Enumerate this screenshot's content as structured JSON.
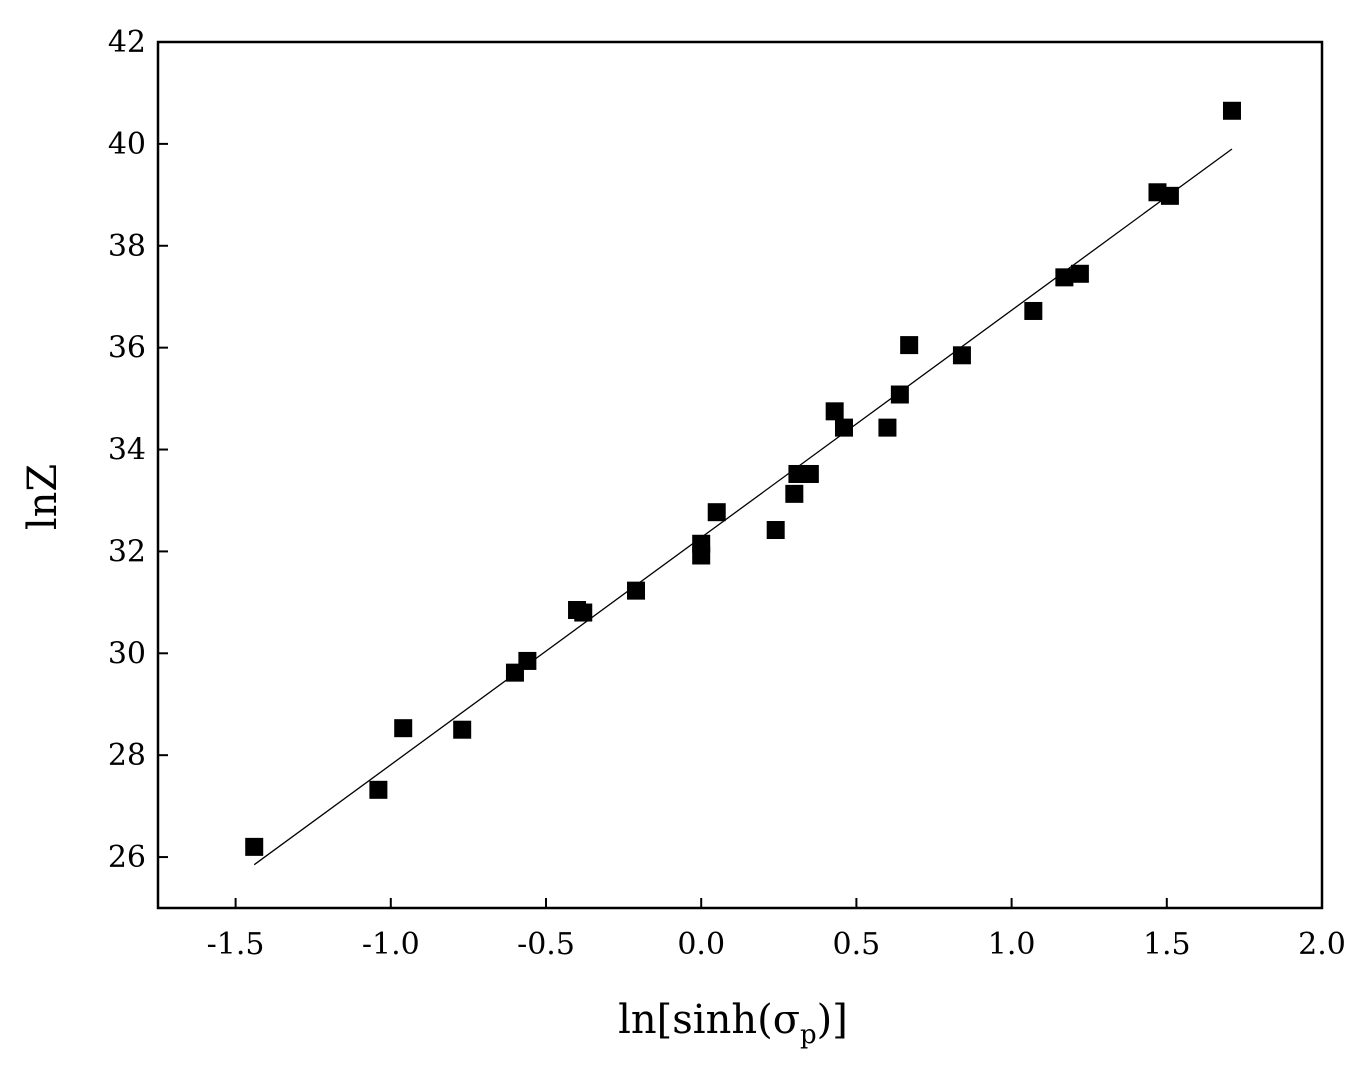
{
  "chart_data": {
    "type": "scatter",
    "title": "",
    "xlabel": "ln[sinh(σp)]",
    "xlabel_parts": {
      "main": "ln[sinh(σ",
      "sub": "p",
      "tail": ")]"
    },
    "ylabel": "lnZ",
    "xlim": [
      -1.75,
      2.0
    ],
    "ylim": [
      25.0,
      42.0
    ],
    "xticks": [
      -1.5,
      -1.0,
      -0.5,
      0.0,
      0.5,
      1.0,
      1.5,
      2.0
    ],
    "xtick_labels": [
      "-1.5",
      "-1.0",
      "-0.5",
      "0.0",
      "0.5",
      "1.0",
      "1.5",
      "2.0"
    ],
    "yticks": [
      26,
      28,
      30,
      32,
      34,
      36,
      38,
      40,
      42
    ],
    "ytick_labels": [
      "26",
      "28",
      "30",
      "32",
      "34",
      "36",
      "38",
      "40",
      "42"
    ],
    "grid": false,
    "legend": "none",
    "marker": "square",
    "marker_color": "#000000",
    "points": [
      {
        "x": -1.44,
        "y": 26.2
      },
      {
        "x": -1.04,
        "y": 27.32
      },
      {
        "x": -0.96,
        "y": 28.53
      },
      {
        "x": -0.77,
        "y": 28.5
      },
      {
        "x": -0.6,
        "y": 29.62
      },
      {
        "x": -0.56,
        "y": 29.85
      },
      {
        "x": -0.4,
        "y": 30.85
      },
      {
        "x": -0.38,
        "y": 30.8
      },
      {
        "x": -0.21,
        "y": 31.23
      },
      {
        "x": 0.0,
        "y": 31.92
      },
      {
        "x": 0.0,
        "y": 32.15
      },
      {
        "x": 0.05,
        "y": 32.77
      },
      {
        "x": 0.24,
        "y": 32.42
      },
      {
        "x": 0.3,
        "y": 33.13
      },
      {
        "x": 0.31,
        "y": 33.52
      },
      {
        "x": 0.35,
        "y": 33.52
      },
      {
        "x": 0.43,
        "y": 34.75
      },
      {
        "x": 0.46,
        "y": 34.43
      },
      {
        "x": 0.6,
        "y": 34.43
      },
      {
        "x": 0.64,
        "y": 35.08
      },
      {
        "x": 0.67,
        "y": 36.05
      },
      {
        "x": 0.84,
        "y": 35.85
      },
      {
        "x": 1.07,
        "y": 36.72
      },
      {
        "x": 1.17,
        "y": 37.38
      },
      {
        "x": 1.22,
        "y": 37.45
      },
      {
        "x": 1.47,
        "y": 39.05
      },
      {
        "x": 1.51,
        "y": 38.98
      },
      {
        "x": 1.71,
        "y": 40.65
      }
    ],
    "fit_line": {
      "x": [
        -1.44,
        1.71
      ],
      "y": [
        25.85,
        39.9
      ],
      "color": "#000000"
    }
  }
}
